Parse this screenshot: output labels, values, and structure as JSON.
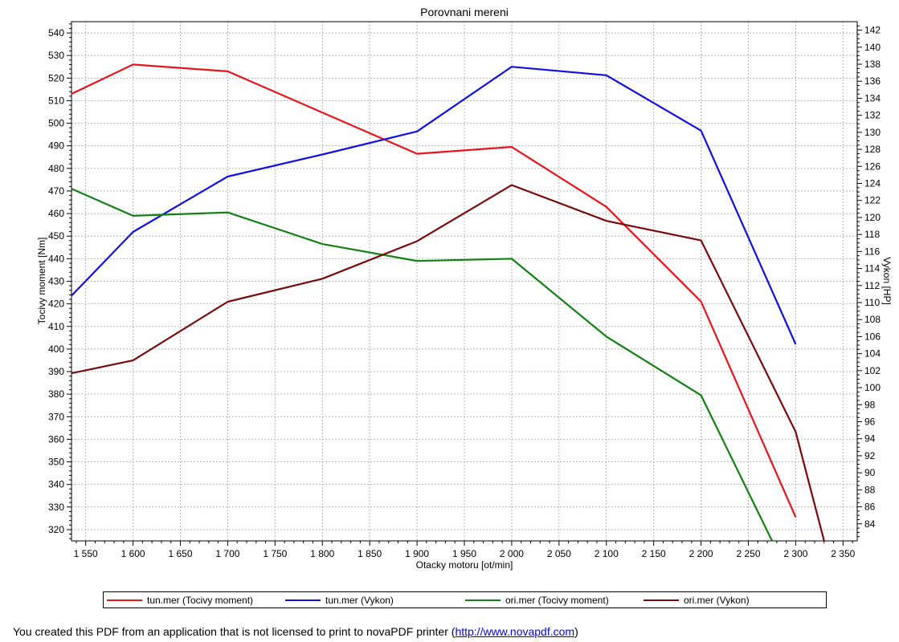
{
  "chart_data": {
    "type": "line",
    "title": "Porovnani mereni",
    "xlabel": "Otacky motoru [ot/min]",
    "ylabel_left": "Tocivy moment [Nm]",
    "ylabel_right": "Vykon [HP]",
    "xlim": [
      1535,
      2365
    ],
    "ylim_left": [
      315,
      545
    ],
    "ylim_right": [
      82,
      143
    ],
    "x_ticks": [
      "1 550",
      "1 600",
      "1 650",
      "1 700",
      "1 750",
      "1 800",
      "1 850",
      "1 900",
      "1 950",
      "2 000",
      "2 050",
      "2 100",
      "2 150",
      "2 200",
      "2 250",
      "2 300",
      "2 350"
    ],
    "y_left_ticks": [
      "320",
      "330",
      "340",
      "350",
      "360",
      "370",
      "380",
      "390",
      "400",
      "410",
      "420",
      "430",
      "440",
      "450",
      "460",
      "470",
      "480",
      "490",
      "500",
      "510",
      "520",
      "530",
      "540"
    ],
    "y_right_ticks": [
      "84",
      "86",
      "88",
      "90",
      "92",
      "94",
      "96",
      "98",
      "100",
      "102",
      "104",
      "106",
      "108",
      "110",
      "112",
      "114",
      "116",
      "118",
      "120",
      "122",
      "124",
      "126",
      "128",
      "130",
      "132",
      "134",
      "136",
      "138",
      "140",
      "142"
    ],
    "grid": true,
    "legend_position": "bottom",
    "series": [
      {
        "name": "tun.mer  (Tocivy moment)",
        "axis": "left",
        "color": "#e8141c",
        "x": [
          1535,
          1600,
          1700,
          1900,
          2000,
          2100,
          2200,
          2300
        ],
        "y": [
          513,
          526,
          523,
          486.5,
          489.5,
          463,
          421,
          325.5
        ]
      },
      {
        "name": "tun.mer  (Vykon)",
        "axis": "right",
        "color": "#1010e0",
        "x": [
          1535,
          1600,
          1700,
          1800,
          1900,
          2000,
          2100,
          2200,
          2300
        ],
        "y": [
          110.8,
          118.3,
          124.8,
          127.4,
          130.1,
          137.7,
          136.7,
          130.2,
          105.1
        ]
      },
      {
        "name": "ori.mer  (Tocivy moment)",
        "axis": "left",
        "color": "#128012",
        "x": [
          1535,
          1600,
          1700,
          1800,
          1900,
          2000,
          2100,
          2200,
          2275
        ],
        "y": [
          471,
          459,
          460.5,
          446.5,
          439,
          440,
          405.5,
          379.5,
          315
        ]
      },
      {
        "name": "ori.mer  (Vykon)",
        "axis": "right",
        "color": "#7a0a0a",
        "x": [
          1535,
          1600,
          1700,
          1800,
          1900,
          2000,
          2100,
          2200,
          2300,
          2330
        ],
        "y": [
          101.7,
          103.2,
          110.1,
          112.8,
          117.2,
          123.8,
          119.6,
          117.3,
          94.8,
          82
        ]
      }
    ]
  },
  "footer": {
    "text": "You created this PDF from an application that is not licensed to print to novaPDF printer (",
    "link": "http://www.novapdf.com",
    "close": ")"
  }
}
